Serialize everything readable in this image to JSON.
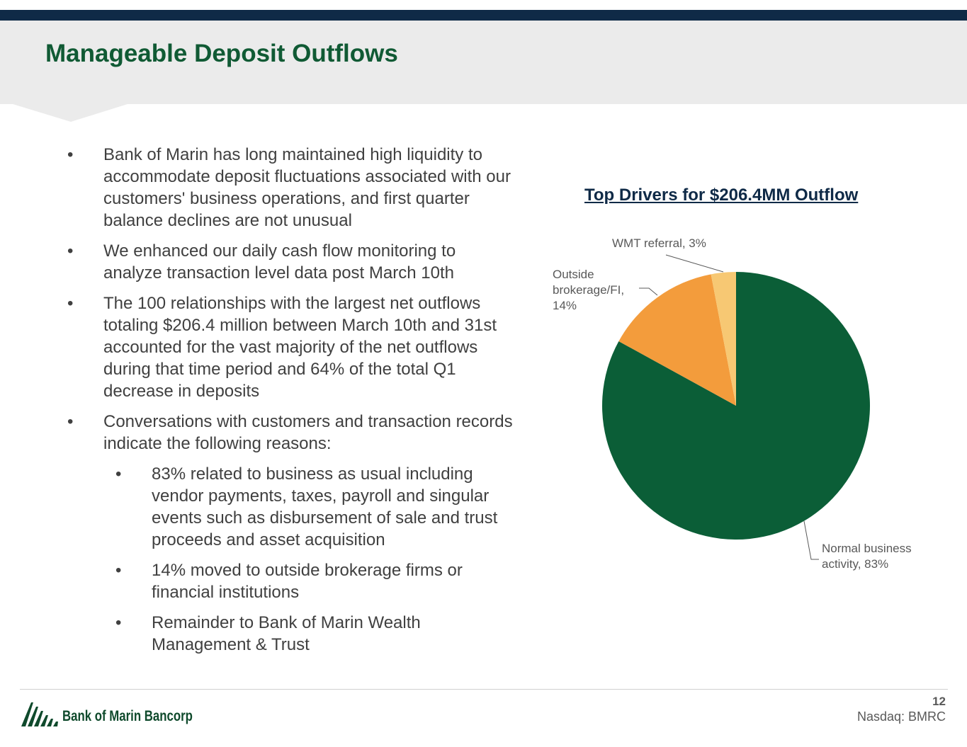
{
  "slide": {
    "title": "Manageable Deposit Outflows",
    "page_number": "12",
    "ticker": "Nasdaq: BMRC",
    "company_name": "Bank of Marin Bancorp"
  },
  "bullets": [
    {
      "level": 1,
      "text": "Bank of Marin has long maintained high liquidity to accommodate deposit fluctuations associated with our customers' business operations, and first quarter balance declines are not unusual"
    },
    {
      "level": 1,
      "text": "We enhanced our daily cash flow monitoring to analyze transaction level data post March 10th"
    },
    {
      "level": 1,
      "text": "The 100 relationships with the largest net outflows totaling $206.4 million between March 10th and 31st accounted for the vast majority of the net outflows during that time period and 64% of the total Q1 decrease in deposits"
    },
    {
      "level": 1,
      "text": "Conversations with customers and transaction records indicate the following reasons:"
    },
    {
      "level": 2,
      "text": "83% related to business as usual including vendor payments, taxes, payroll and singular events such as disbursement of sale and trust proceeds and asset acquisition"
    },
    {
      "level": 2,
      "text": "14% moved to outside brokerage firms or financial institutions"
    },
    {
      "level": 2,
      "text": "Remainder to Bank of Marin Wealth Management & Trust"
    }
  ],
  "bullet_glyph": "•",
  "chart_data": {
    "type": "pie",
    "title": "Top Drivers for $206.4MM Outflow",
    "slices": [
      {
        "label": "Normal business activity",
        "value": 83,
        "value_label": "83%",
        "color": "#0b5e37"
      },
      {
        "label": "Outside brokerage/FI",
        "value": 14,
        "value_label": "14%",
        "color": "#f39c3c"
      },
      {
        "label": "WMT referral",
        "value": 3,
        "value_label": "3%",
        "color": "#f7c873"
      }
    ],
    "labels_display": {
      "normal": [
        "Normal business",
        "activity, 83%"
      ],
      "outside": [
        "Outside",
        "brokerage/FI,",
        "14%"
      ],
      "wmt": [
        "WMT referral, 3%"
      ]
    }
  },
  "colors": {
    "brand_green": "#105a34",
    "navy": "#0f2a47",
    "header_gray": "#ebebeb"
  }
}
